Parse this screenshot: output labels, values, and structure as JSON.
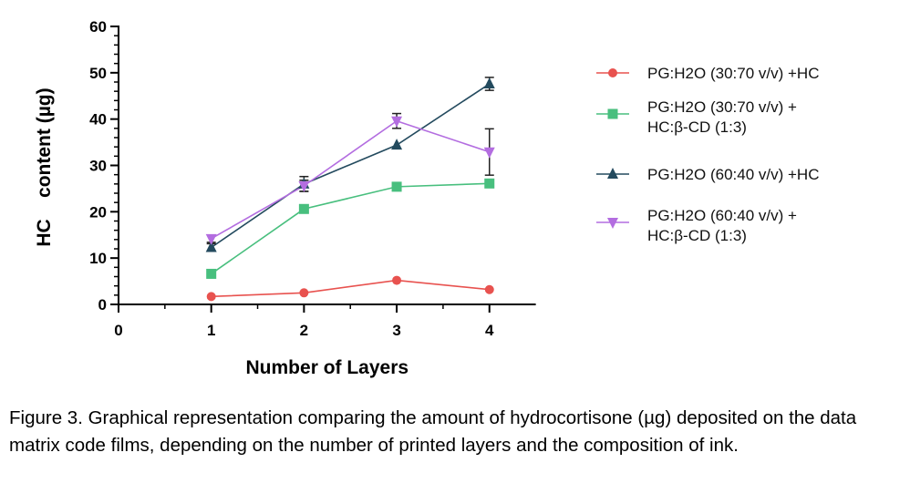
{
  "caption": "Figure 3. Graphical representation comparing the amount of hydrocortisone (µg) deposited on the data matrix code films, depending on the number of printed layers and the composition of ink.",
  "chart_data": {
    "type": "line",
    "xlabel": "Number of Layers",
    "ylabel": "HC    content (µg)",
    "xlim": [
      0,
      4.5
    ],
    "ylim": [
      0,
      60
    ],
    "xticks": [
      0,
      1,
      2,
      3,
      4
    ],
    "yticks": [
      0,
      10,
      20,
      30,
      40,
      50,
      60
    ],
    "legend_position": "right",
    "grid": false,
    "x": [
      1,
      2,
      3,
      4
    ],
    "series": [
      {
        "name_lines": [
          "PG:H2O (30:70 v/v) +HC"
        ],
        "color": "#e8524f",
        "marker": "circle",
        "values": [
          1.7,
          2.5,
          5.2,
          3.2
        ],
        "errors": [
          0,
          0,
          0,
          0
        ]
      },
      {
        "name_lines": [
          "PG:H2O (30:70 v/v) +",
          "HC:β-CD (1:3)"
        ],
        "color": "#48bf7e",
        "marker": "square",
        "values": [
          6.6,
          20.6,
          25.4,
          26.1
        ],
        "errors": [
          0,
          0,
          0,
          0
        ]
      },
      {
        "name_lines": [
          "PG:H2O (60:40 v/v) +HC"
        ],
        "color": "#234a5e",
        "marker": "triangle-up",
        "values": [
          12.3,
          26.0,
          34.4,
          47.6
        ],
        "errors": [
          0.8,
          1.6,
          0,
          1.4
        ]
      },
      {
        "name_lines": [
          "PG:H2O (60:40 v/v) +",
          "HC:β-CD (1:3)"
        ],
        "color": "#b36de0",
        "marker": "triangle-down",
        "values": [
          14.2,
          25.6,
          39.6,
          32.9
        ],
        "errors": [
          0.8,
          1.2,
          1.6,
          5.0
        ]
      }
    ]
  }
}
